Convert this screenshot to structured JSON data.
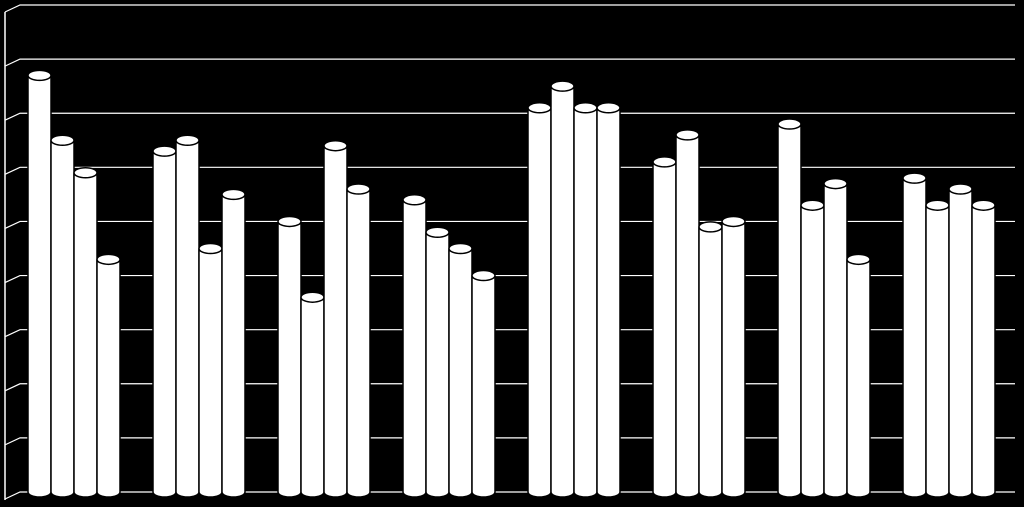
{
  "chart_data": {
    "type": "bar",
    "categories": [
      null,
      null,
      null,
      null,
      null,
      null,
      null,
      null
    ],
    "series": [
      {
        "color": "#ffffff",
        "values": [
          7.7,
          6.3,
          5.0,
          5.4,
          7.1,
          6.1,
          6.8,
          5.8
        ]
      },
      {
        "color": "#ffffff",
        "values": [
          6.5,
          6.5,
          3.6,
          4.8,
          7.5,
          6.6,
          5.3,
          5.3
        ]
      },
      {
        "color": "#ffffff",
        "values": [
          5.9,
          4.5,
          6.4,
          4.5,
          7.1,
          4.9,
          5.7,
          5.6
        ]
      },
      {
        "color": "#ffffff",
        "values": [
          4.3,
          5.5,
          5.6,
          4.0,
          7.1,
          5.0,
          4.3,
          5.3
        ]
      }
    ],
    "ylim": [
      0,
      9
    ],
    "yticks": [
      0,
      1,
      2,
      3,
      4,
      5,
      6,
      7,
      8,
      9
    ],
    "grid": true
  }
}
